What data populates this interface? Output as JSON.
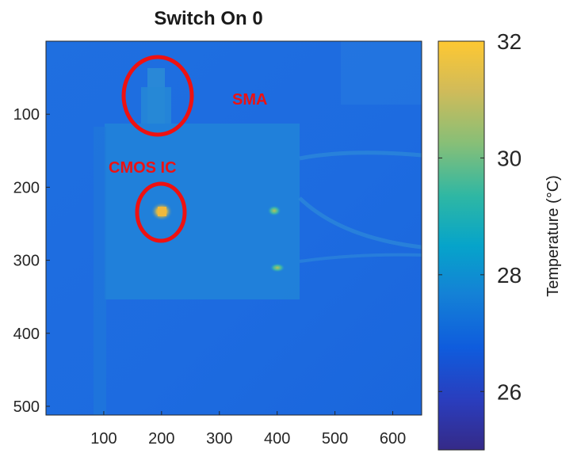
{
  "chart_data": {
    "type": "heatmap",
    "title": "Switch On 0",
    "xlabel": "",
    "ylabel": "",
    "xlim": [
      0,
      650
    ],
    "ylim": [
      0,
      512
    ],
    "x_ticks": [
      100,
      200,
      300,
      400,
      500,
      600
    ],
    "y_ticks": [
      100,
      200,
      300,
      400,
      500
    ],
    "colorbar": {
      "label": "Temperature (°C)",
      "min": 25,
      "max": 32,
      "ticks": [
        26,
        28,
        30,
        32
      ],
      "colormap": [
        "#352a87",
        "#0f5cdd",
        "#1481d6",
        "#06a4ca",
        "#2eb7a4",
        "#87bf77",
        "#d1bb59",
        "#fec832",
        "#f9fb0e"
      ]
    },
    "annotations": [
      {
        "text": "SMA",
        "color": "#ee1111"
      },
      {
        "text": "CMOS IC",
        "color": "#ee1111"
      }
    ],
    "markers": [
      {
        "name": "SMA",
        "cx": 195,
        "cy": 78,
        "rx": 45,
        "ry": 52
      },
      {
        "name": "CMOS IC",
        "cx": 195,
        "cy": 248,
        "rx": 32,
        "ry": 38
      }
    ],
    "hotspots": [
      {
        "x": 195,
        "y": 245,
        "temp": 31.5
      },
      {
        "x": 390,
        "y": 240,
        "temp": 29.5
      },
      {
        "x": 395,
        "y": 310,
        "temp": 29.5
      }
    ],
    "grid": false
  }
}
